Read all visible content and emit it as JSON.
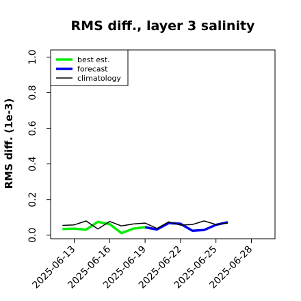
{
  "chart_data": {
    "type": "line",
    "title": "RMS diff., layer 3 salinity",
    "xlabel": "",
    "ylabel": "RMS diff. (1e-3)",
    "ylim": [
      -0.02,
      1.04
    ],
    "yticks": [
      0.0,
      0.2,
      0.4,
      0.6,
      0.8,
      1.0
    ],
    "ytick_labels": [
      "0.0",
      "0.2",
      "0.4",
      "0.6",
      "0.8",
      "1.0"
    ],
    "xlim": [
      "2025-06-11",
      "2025-06-30"
    ],
    "xticks": [
      "2025-06-13",
      "2025-06-16",
      "2025-06-19",
      "2025-06-22",
      "2025-06-25",
      "2025-06-28"
    ],
    "highlight_tick": "2025-06-19",
    "highlight_color": "#228B22",
    "grid": false,
    "legend_position": "top-left",
    "series": [
      {
        "name": "best est.",
        "color": "#00ee00",
        "x": [
          "2025-06-12",
          "2025-06-13",
          "2025-06-14",
          "2025-06-15",
          "2025-06-16",
          "2025-06-17",
          "2025-06-18",
          "2025-06-19"
        ],
        "values": [
          0.035,
          0.037,
          0.031,
          0.075,
          0.062,
          0.012,
          0.037,
          0.045
        ]
      },
      {
        "name": "forecast",
        "color": "#0000ee",
        "x": [
          "2025-06-19",
          "2025-06-20",
          "2025-06-21",
          "2025-06-22",
          "2025-06-23",
          "2025-06-24",
          "2025-06-25",
          "2025-06-26"
        ],
        "values": [
          0.045,
          0.032,
          0.068,
          0.064,
          0.025,
          0.029,
          0.058,
          0.073
        ]
      },
      {
        "name": "climatology",
        "color": "#000000",
        "x": [
          "2025-06-12",
          "2025-06-13",
          "2025-06-14",
          "2025-06-15",
          "2025-06-16",
          "2025-06-17",
          "2025-06-18",
          "2025-06-19",
          "2025-06-20",
          "2025-06-21",
          "2025-06-22",
          "2025-06-23",
          "2025-06-24",
          "2025-06-25",
          "2025-06-26"
        ],
        "values": [
          0.055,
          0.058,
          0.08,
          0.035,
          0.077,
          0.052,
          0.063,
          0.068,
          0.038,
          0.075,
          0.057,
          0.06,
          0.08,
          0.06,
          0.068
        ]
      }
    ]
  }
}
